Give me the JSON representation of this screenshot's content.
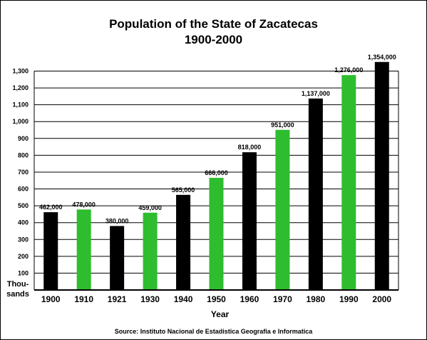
{
  "chart_data": {
    "type": "bar",
    "title": "Population of the State of Zacatecas",
    "subtitle": "1900-2000",
    "ylabel": "Thou-\nsands",
    "xlabel": "Year",
    "source": "Source: Instituto Nacional de Estadistica Geografia e Informatica",
    "categories": [
      "1900",
      "1910",
      "1921",
      "1930",
      "1940",
      "1950",
      "1960",
      "1970",
      "1980",
      "1990",
      "2000"
    ],
    "values": [
      462,
      478,
      380,
      459,
      565,
      666,
      818,
      951,
      1137,
      1276,
      1354
    ],
    "data_labels": [
      "462,000",
      "478,000",
      "380,000",
      "459,000",
      "565,000",
      "666,000",
      "818,000",
      "951,000",
      "1,137,000",
      "1,276,000",
      "1,354,000"
    ],
    "bar_colors": [
      "#000000",
      "#2ebd2e",
      "#000000",
      "#2ebd2e",
      "#000000",
      "#2ebd2e",
      "#000000",
      "#2ebd2e",
      "#000000",
      "#2ebd2e",
      "#000000"
    ],
    "ylim": [
      0,
      1300
    ],
    "yticks": [
      100,
      200,
      300,
      400,
      500,
      600,
      700,
      800,
      900,
      1000,
      1100,
      1200,
      1300
    ],
    "ytick_labels": [
      "100",
      "200",
      "300",
      "400",
      "500",
      "600",
      "700",
      "800",
      "900",
      "1,000",
      "1,100",
      "1,200",
      "1,300"
    ],
    "grid": true,
    "legend": "none"
  }
}
